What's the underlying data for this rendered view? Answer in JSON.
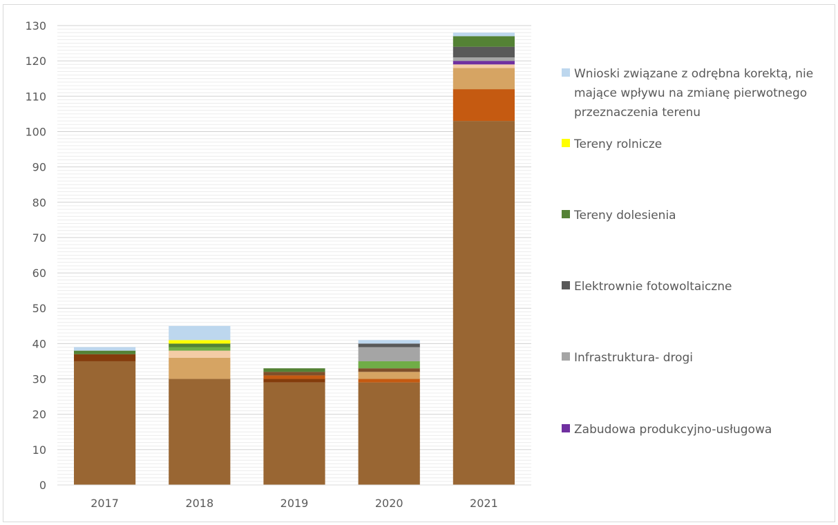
{
  "chart_data": {
    "type": "bar",
    "stacked": true,
    "categories": [
      "2017",
      "2018",
      "2019",
      "2020",
      "2021"
    ],
    "ylim": [
      0,
      130
    ],
    "yticks": [
      0,
      10,
      20,
      30,
      40,
      50,
      60,
      70,
      80,
      90,
      100,
      110,
      120,
      130
    ],
    "grid": true,
    "legend_position": "right",
    "series": [
      {
        "color": "#996633",
        "values": [
          35,
          30,
          29,
          29,
          103
        ]
      },
      {
        "color": "#843c0c",
        "values": [
          2,
          0,
          1,
          0,
          0
        ]
      },
      {
        "color": "#c55a11",
        "values": [
          0,
          0,
          1,
          1,
          9
        ]
      },
      {
        "color": "#d6a463",
        "values": [
          0,
          6,
          0,
          2,
          6
        ]
      },
      {
        "color": "#f4cca6",
        "values": [
          0,
          2,
          0,
          0,
          1
        ]
      },
      {
        "color": "#7f4f2a",
        "values": [
          0,
          0,
          1,
          1,
          0
        ]
      },
      {
        "color": "#70ad47",
        "values": [
          0,
          1,
          0,
          2,
          0
        ]
      },
      {
        "name": "Zabudowa produkcyjno-usługowa",
        "color": "#7030a0",
        "values": [
          0,
          0,
          0,
          0,
          1
        ]
      },
      {
        "name": "Infrastruktura- drogi",
        "color": "#a5a5a5",
        "values": [
          0,
          0,
          0,
          4,
          1
        ]
      },
      {
        "name": "Elektrownie fotowoltaiczne",
        "color": "#595959",
        "values": [
          0,
          0,
          0,
          1,
          3
        ]
      },
      {
        "name": "Tereny dolesienia",
        "color": "#548235",
        "values": [
          1,
          1,
          1,
          0,
          3
        ]
      },
      {
        "name": "Tereny rolnicze",
        "color": "#ffff00",
        "values": [
          0,
          1,
          0,
          0,
          0
        ]
      },
      {
        "name": "Wnioski związane z odrębna korektą, nie mające wpływu na zmianę pierwotnego przeznaczenia terenu",
        "color": "#bdd7ee",
        "values": [
          1,
          4,
          0,
          1,
          1
        ]
      }
    ]
  },
  "legend": [
    {
      "label": "Wnioski związane z odrębna korektą, nie mające wpływu na zmianę pierwotnego przeznaczenia terenu",
      "color": "#bdd7ee"
    },
    {
      "label": "Tereny rolnicze",
      "color": "#ffff00"
    },
    {
      "label": "Tereny dolesienia",
      "color": "#548235"
    },
    {
      "label": "Elektrownie fotowoltaiczne",
      "color": "#595959"
    },
    {
      "label": "Infrastruktura- drogi",
      "color": "#a5a5a5"
    },
    {
      "label": "Zabudowa produkcyjno-usługowa",
      "color": "#7030a0"
    }
  ]
}
